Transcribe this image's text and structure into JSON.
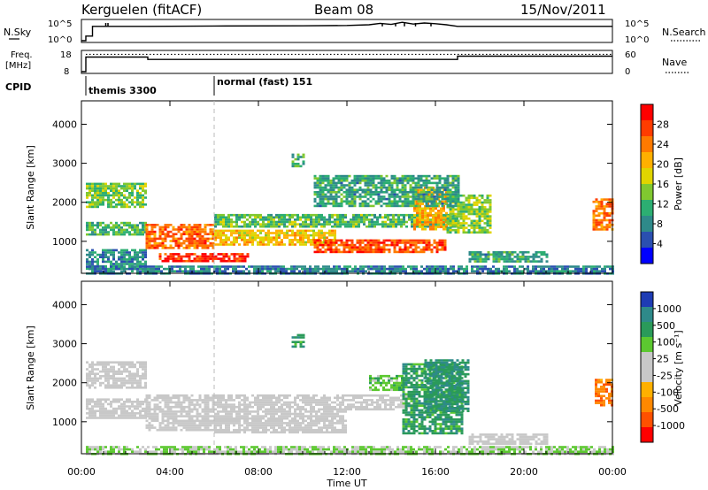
{
  "header": {
    "station": "Kerguelen (fitACF)",
    "beam": "Beam 08",
    "date": "15/Nov/2011"
  },
  "nsky_panel": {
    "left_label": "N.Sky",
    "right_label": "N.Search",
    "left_ticks": [
      "10^5",
      "10^0"
    ],
    "right_ticks": [
      "10^5",
      "10^0"
    ],
    "sky_line": [
      [
        0,
        0
      ],
      [
        0.2,
        0
      ],
      [
        0.2,
        1.3
      ],
      [
        0.5,
        1.3
      ],
      [
        0.5,
        4.05
      ],
      [
        3,
        4.05
      ],
      [
        6,
        4.15
      ],
      [
        10,
        4.2
      ],
      [
        12,
        4.3
      ],
      [
        13,
        4.5
      ],
      [
        13.5,
        4.9
      ],
      [
        14,
        4.6
      ],
      [
        14.5,
        5.2
      ],
      [
        15,
        4.7
      ],
      [
        15.5,
        5.0
      ],
      [
        16,
        4.8
      ],
      [
        16.5,
        4.5
      ],
      [
        17,
        4.05
      ],
      [
        24,
        4.05
      ]
    ],
    "sky_spikes": [
      [
        1.1,
        5.0
      ],
      [
        1.2,
        5.0
      ],
      [
        13.6,
        5.0
      ],
      [
        14.2,
        5.0
      ],
      [
        14.6,
        5.0
      ],
      [
        15.1,
        5.0
      ],
      [
        15.8,
        4.9
      ]
    ]
  },
  "freq_panel": {
    "left_label_1": "Freq.",
    "left_label_2": "[MHz]",
    "right_label": "Nave",
    "left_ticks": [
      "18",
      "8"
    ],
    "right_ticks": [
      "60",
      "0"
    ],
    "freq_steps": [
      [
        0,
        0
      ],
      [
        0.2,
        0
      ],
      [
        0.2,
        13.5
      ],
      [
        3,
        13.5
      ],
      [
        3,
        11.3
      ],
      [
        17,
        11.3
      ],
      [
        17,
        14.3
      ],
      [
        24,
        14.3
      ]
    ],
    "nave_level": 16.0
  },
  "cpid_panel": {
    "label": "CPID",
    "programs": [
      {
        "name": "themis 3300",
        "start": 0.2
      },
      {
        "name": "normal (fast) 151",
        "start": 6.0
      }
    ]
  },
  "power_panel": {
    "ylabel": "Slant Range [km]",
    "cb_label": "Power [dB]",
    "cb_ticks": [
      "28",
      "24",
      "20",
      "16",
      "12",
      "8",
      "4"
    ],
    "cb_colors": [
      "#ff0000",
      "#ff3c00",
      "#ff7a00",
      "#ffb000",
      "#e0d400",
      "#80c830",
      "#2cae72",
      "#2e8a8a",
      "#2a4fb0",
      "#0000ff"
    ]
  },
  "velocity_panel": {
    "ylabel": "Slant Range [km]",
    "cb_label": "Velocity [m s⁻¹]",
    "cb_ticks": [
      "1000",
      "500",
      "100",
      "25",
      "-25",
      "-100",
      "-500",
      "-1000"
    ],
    "cb_colors": [
      "#1e3cb4",
      "#2e8a8a",
      "#2a9a5a",
      "#5cc830",
      "#c8c8c8",
      "#c8c8c8",
      "#ffb000",
      "#ff8800",
      "#ff5000",
      "#ff0000"
    ]
  },
  "chart_data": [
    {
      "type": "heatmap",
      "quantity": "Power [dB]",
      "x_range": [
        0,
        24
      ],
      "y_range": [
        180,
        4600
      ],
      "y_ticks": [
        1000,
        2000,
        3000,
        4000
      ],
      "x_tick_labels": [
        "00:00",
        "04:00",
        "08:00",
        "12:00",
        "16:00",
        "20:00",
        "00:00"
      ],
      "x_tick_hours": [
        0,
        4,
        8,
        12,
        16,
        20,
        24
      ],
      "vline_hour": 6.0,
      "regions": [
        {
          "x": [
            0.2,
            2.9
          ],
          "y": [
            1900,
            2500
          ],
          "level": 0.42
        },
        {
          "x": [
            0.2,
            2.9
          ],
          "y": [
            1150,
            1500
          ],
          "level": 0.35
        },
        {
          "x": [
            0.2,
            2.9
          ],
          "y": [
            300,
            800
          ],
          "level": 0.25
        },
        {
          "x": [
            2.9,
            6.0
          ],
          "y": [
            850,
            1450
          ],
          "level": 0.82
        },
        {
          "x": [
            3.5,
            7.5
          ],
          "y": [
            500,
            700
          ],
          "level": 0.95
        },
        {
          "x": [
            6.0,
            11.5
          ],
          "y": [
            900,
            1300
          ],
          "level": 0.62
        },
        {
          "x": [
            6.0,
            17.0
          ],
          "y": [
            1350,
            1700
          ],
          "level": 0.38
        },
        {
          "x": [
            10.5,
            16.5
          ],
          "y": [
            750,
            1050
          ],
          "level": 0.88
        },
        {
          "x": [
            15.0,
            16.5
          ],
          "y": [
            1300,
            2400
          ],
          "level": 0.7
        },
        {
          "x": [
            16.5,
            18.5
          ],
          "y": [
            1200,
            2200
          ],
          "level": 0.45
        },
        {
          "x": [
            10.5,
            17.0
          ],
          "y": [
            1900,
            2700
          ],
          "level": 0.3
        },
        {
          "x": [
            9.5,
            10.1
          ],
          "y": [
            2950,
            3250
          ],
          "level": 0.35
        },
        {
          "x": [
            17.5,
            21.0
          ],
          "y": [
            500,
            750
          ],
          "level": 0.3
        },
        {
          "x": [
            23.1,
            24.0
          ],
          "y": [
            1300,
            2100
          ],
          "level": 0.8
        },
        {
          "x": [
            0.2,
            24.0
          ],
          "y": [
            200,
            380
          ],
          "level": 0.2
        }
      ]
    },
    {
      "type": "heatmap",
      "quantity": "Velocity [m s⁻¹]",
      "x_range": [
        0,
        24
      ],
      "y_range": [
        180,
        4600
      ],
      "y_ticks": [
        1000,
        2000,
        3000,
        4000
      ],
      "x_tick_labels": [
        "00:00",
        "04:00",
        "08:00",
        "12:00",
        "16:00",
        "20:00",
        "00:00"
      ],
      "x_tick_hours": [
        0,
        4,
        8,
        12,
        16,
        20,
        24
      ],
      "vline_hour": 6.0,
      "xlabel": "Time UT",
      "regions": [
        {
          "x": [
            0.2,
            2.9
          ],
          "y": [
            1900,
            2550
          ],
          "level": 0.5
        },
        {
          "x": [
            0.2,
            2.9
          ],
          "y": [
            1100,
            1600
          ],
          "level": 0.5
        },
        {
          "x": [
            2.9,
            6.0
          ],
          "y": [
            800,
            1700
          ],
          "level": 0.5
        },
        {
          "x": [
            6.0,
            12.0
          ],
          "y": [
            700,
            1700
          ],
          "level": 0.5
        },
        {
          "x": [
            12.0,
            15.0
          ],
          "y": [
            1300,
            1700
          ],
          "level": 0.5
        },
        {
          "x": [
            13.0,
            14.5
          ],
          "y": [
            1800,
            2200
          ],
          "level": 0.68
        },
        {
          "x": [
            14.5,
            17.2
          ],
          "y": [
            700,
            2500
          ],
          "level": 0.78
        },
        {
          "x": [
            15.5,
            17.5
          ],
          "y": [
            1300,
            2600
          ],
          "level": 0.82
        },
        {
          "x": [
            9.5,
            10.1
          ],
          "y": [
            2950,
            3250
          ],
          "level": 0.8
        },
        {
          "x": [
            17.5,
            21.0
          ],
          "y": [
            450,
            700
          ],
          "level": 0.5
        },
        {
          "x": [
            23.2,
            24.0
          ],
          "y": [
            1400,
            2100
          ],
          "level": 0.2
        },
        {
          "x": [
            0.2,
            24.0
          ],
          "y": [
            200,
            380
          ],
          "level": 0.62
        }
      ]
    }
  ]
}
